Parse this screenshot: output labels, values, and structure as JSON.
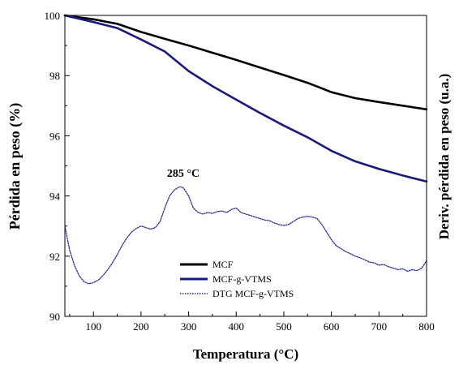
{
  "chart_data": {
    "type": "line",
    "xlabel": "Temperatura (°C)",
    "ylabel": "Pérdida en peso (%)",
    "y2label": "Deriv. pérdida en peso (u.a.)",
    "xlim": [
      40,
      800
    ],
    "ylim": [
      90,
      100
    ],
    "xticks": [
      "100",
      "200",
      "300",
      "400",
      "500",
      "600",
      "700",
      "800"
    ],
    "yticks": [
      "90",
      "92",
      "94",
      "96",
      "98",
      "100"
    ],
    "annotation": "285 °C",
    "legend_position": "bottom-center",
    "grid": false,
    "series": [
      {
        "name": "MCF",
        "color": "#000000",
        "style": "solid",
        "x": [
          40,
          100,
          150,
          200,
          250,
          300,
          350,
          400,
          450,
          500,
          550,
          600,
          650,
          700,
          750,
          800
        ],
        "y": [
          100,
          99.87,
          99.72,
          99.45,
          99.22,
          99.0,
          98.76,
          98.52,
          98.27,
          98.02,
          97.76,
          97.45,
          97.25,
          97.12,
          97.0,
          96.88
        ]
      },
      {
        "name": "MCF-g-VTMS",
        "color": "#1a1a7a",
        "style": "solid",
        "x": [
          40,
          100,
          150,
          200,
          250,
          300,
          350,
          400,
          450,
          500,
          550,
          600,
          650,
          700,
          750,
          800
        ],
        "y": [
          100,
          99.78,
          99.58,
          99.2,
          98.8,
          98.15,
          97.65,
          97.2,
          96.76,
          96.34,
          95.95,
          95.5,
          95.15,
          94.9,
          94.68,
          94.48
        ]
      },
      {
        "name": "DTG MCF-g-VTMS",
        "color": "#2a2a90",
        "style": "dotted",
        "axis": "secondary",
        "x": [
          40,
          50,
          60,
          70,
          80,
          90,
          100,
          110,
          120,
          130,
          140,
          150,
          160,
          170,
          180,
          190,
          200,
          210,
          220,
          230,
          240,
          250,
          260,
          270,
          280,
          285,
          290,
          300,
          310,
          320,
          330,
          340,
          350,
          360,
          370,
          380,
          390,
          400,
          410,
          420,
          430,
          440,
          450,
          460,
          470,
          480,
          490,
          500,
          510,
          520,
          530,
          540,
          550,
          560,
          570,
          580,
          590,
          600,
          610,
          620,
          630,
          640,
          650,
          660,
          670,
          680,
          690,
          700,
          710,
          720,
          730,
          740,
          750,
          760,
          770,
          780,
          790,
          800
        ],
        "y": [
          93.0,
          92.2,
          91.7,
          91.35,
          91.15,
          91.08,
          91.12,
          91.2,
          91.35,
          91.55,
          91.78,
          92.05,
          92.35,
          92.6,
          92.8,
          92.92,
          93.0,
          92.95,
          92.9,
          92.95,
          93.15,
          93.6,
          94.0,
          94.2,
          94.3,
          94.3,
          94.25,
          94.0,
          93.6,
          93.45,
          93.4,
          93.45,
          93.42,
          93.48,
          93.5,
          93.45,
          93.55,
          93.6,
          93.45,
          93.4,
          93.35,
          93.3,
          93.25,
          93.2,
          93.18,
          93.1,
          93.05,
          93.02,
          93.05,
          93.15,
          93.25,
          93.3,
          93.32,
          93.3,
          93.25,
          93.05,
          92.8,
          92.55,
          92.35,
          92.25,
          92.15,
          92.08,
          92.0,
          91.95,
          91.88,
          91.8,
          91.78,
          91.7,
          91.72,
          91.65,
          91.6,
          91.55,
          91.58,
          91.5,
          91.55,
          91.52,
          91.6,
          91.85
        ]
      }
    ]
  }
}
